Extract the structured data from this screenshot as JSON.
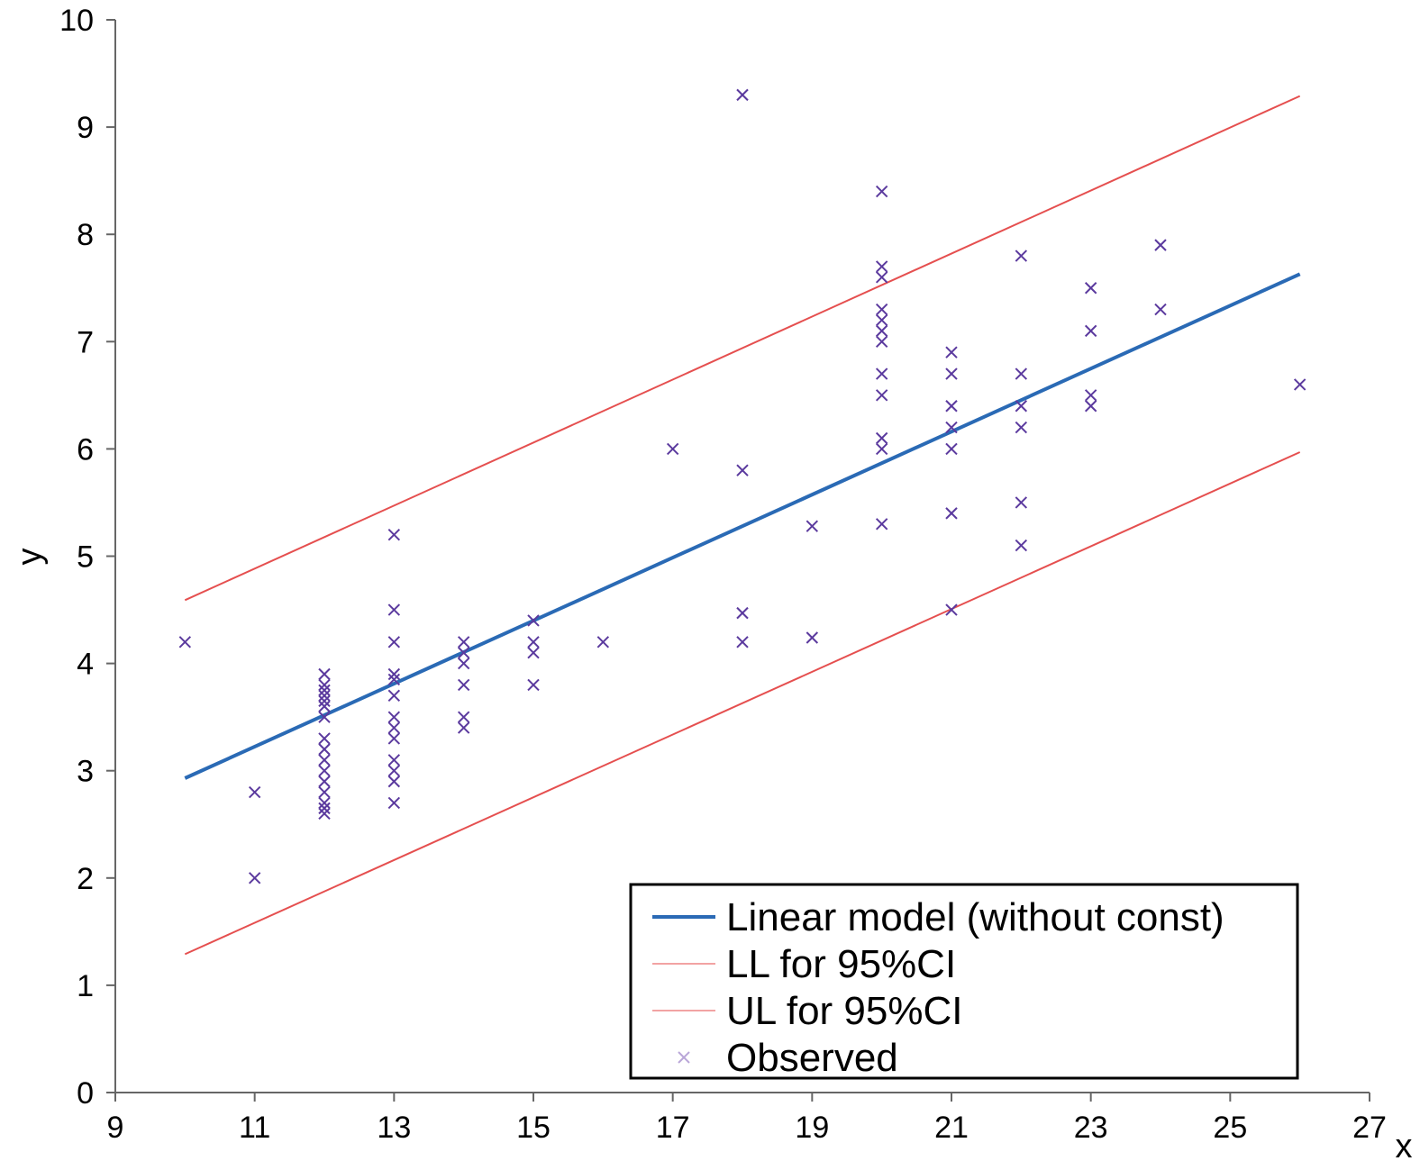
{
  "chart_data": {
    "type": "scatter",
    "title": "",
    "xlabel": "x",
    "ylabel": "y",
    "xlim": [
      9,
      27
    ],
    "ylim": [
      0,
      10
    ],
    "x_ticks": [
      "9",
      "11",
      "13",
      "15",
      "17",
      "19",
      "21",
      "23",
      "25",
      "27"
    ],
    "y_ticks": [
      "0",
      "1",
      "2",
      "3",
      "4",
      "5",
      "6",
      "7",
      "8",
      "9",
      "10"
    ],
    "grid": false,
    "legend_position": "bottom-right",
    "series": [
      {
        "name": "Linear model (without const)",
        "kind": "line",
        "color": "#2a6ab5",
        "points": [
          [
            10,
            2.93
          ],
          [
            26,
            7.63
          ]
        ]
      },
      {
        "name": "LL for 95%CI",
        "kind": "line",
        "color": "#e23c3c",
        "points": [
          [
            10,
            1.29
          ],
          [
            26,
            5.97
          ]
        ]
      },
      {
        "name": "UL for 95%CI",
        "kind": "line",
        "color": "#e23c3c",
        "points": [
          [
            10,
            4.59
          ],
          [
            26,
            9.29
          ]
        ]
      },
      {
        "name": "Observed",
        "kind": "scatter",
        "color": "#5b3a9e",
        "points": [
          [
            10,
            4.2
          ],
          [
            11,
            2.8
          ],
          [
            11,
            2.0
          ],
          [
            12,
            3.9
          ],
          [
            12,
            3.8
          ],
          [
            12,
            3.75
          ],
          [
            12,
            3.7
          ],
          [
            12,
            3.65
          ],
          [
            12,
            3.6
          ],
          [
            12,
            3.5
          ],
          [
            12,
            3.3
          ],
          [
            12,
            3.2
          ],
          [
            12,
            3.1
          ],
          [
            12,
            3.0
          ],
          [
            12,
            2.9
          ],
          [
            12,
            2.8
          ],
          [
            12,
            2.7
          ],
          [
            12,
            2.65
          ],
          [
            12,
            2.6
          ],
          [
            13,
            5.2
          ],
          [
            13,
            4.5
          ],
          [
            13,
            4.2
          ],
          [
            13,
            3.9
          ],
          [
            13,
            3.85
          ],
          [
            13,
            3.7
          ],
          [
            13,
            3.5
          ],
          [
            13,
            3.4
          ],
          [
            13,
            3.3
          ],
          [
            13,
            3.1
          ],
          [
            13,
            3.0
          ],
          [
            13,
            2.9
          ],
          [
            13,
            2.7
          ],
          [
            14,
            4.2
          ],
          [
            14,
            4.1
          ],
          [
            14,
            4.0
          ],
          [
            14,
            3.8
          ],
          [
            14,
            3.5
          ],
          [
            14,
            3.4
          ],
          [
            15,
            4.4
          ],
          [
            15,
            4.2
          ],
          [
            15,
            4.1
          ],
          [
            15,
            3.8
          ],
          [
            16,
            4.2
          ],
          [
            17,
            6.0
          ],
          [
            18,
            9.3
          ],
          [
            18,
            5.8
          ],
          [
            18,
            4.47
          ],
          [
            18,
            4.2
          ],
          [
            19,
            5.28
          ],
          [
            19,
            4.24
          ],
          [
            20,
            8.4
          ],
          [
            20,
            7.7
          ],
          [
            20,
            7.6
          ],
          [
            20,
            7.3
          ],
          [
            20,
            7.2
          ],
          [
            20,
            7.1
          ],
          [
            20,
            7.0
          ],
          [
            20,
            6.7
          ],
          [
            20,
            6.5
          ],
          [
            20,
            6.1
          ],
          [
            20,
            6.0
          ],
          [
            20,
            5.3
          ],
          [
            21,
            6.9
          ],
          [
            21,
            6.7
          ],
          [
            21,
            6.4
          ],
          [
            21,
            6.2
          ],
          [
            21,
            6.0
          ],
          [
            21,
            5.4
          ],
          [
            21,
            4.5
          ],
          [
            22,
            7.8
          ],
          [
            22,
            6.7
          ],
          [
            22,
            6.4
          ],
          [
            22,
            6.2
          ],
          [
            22,
            5.5
          ],
          [
            22,
            5.1
          ],
          [
            23,
            7.5
          ],
          [
            23,
            7.1
          ],
          [
            23,
            6.5
          ],
          [
            23,
            6.4
          ],
          [
            24,
            7.9
          ],
          [
            24,
            7.3
          ],
          [
            26,
            6.6
          ]
        ]
      }
    ]
  }
}
